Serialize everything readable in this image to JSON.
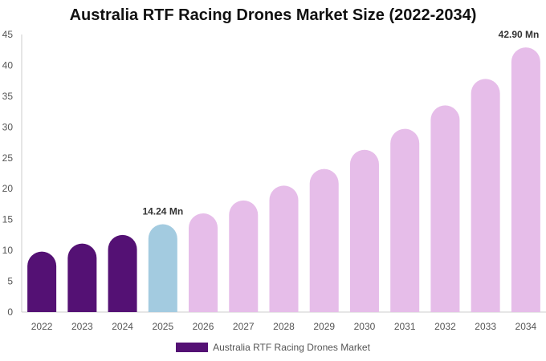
{
  "chart_data": {
    "type": "bar",
    "title": "Australia RTF Racing Drones Market Size (2022-2034)",
    "categories": [
      "2022",
      "2023",
      "2024",
      "2025",
      "2026",
      "2027",
      "2028",
      "2029",
      "2030",
      "2031",
      "2032",
      "2033",
      "2034"
    ],
    "series": [
      {
        "name": "Australia RTF Racing Drones Market",
        "values": [
          9.8,
          11.1,
          12.5,
          14.24,
          16.0,
          18.1,
          20.5,
          23.2,
          26.3,
          29.7,
          33.5,
          37.8,
          42.9
        ]
      }
    ],
    "bar_phase": [
      "historical",
      "historical",
      "historical",
      "base",
      "forecast",
      "forecast",
      "forecast",
      "forecast",
      "forecast",
      "forecast",
      "forecast",
      "forecast",
      "forecast"
    ],
    "data_labels": [
      {
        "index": 3,
        "text": "14.24 Mn"
      },
      {
        "index": 12,
        "text": "42.90 Mn"
      }
    ],
    "xlabel": "",
    "ylabel": "",
    "ylim": [
      0,
      45
    ],
    "yticks": [
      0,
      5,
      10,
      15,
      20,
      25,
      30,
      35,
      40,
      45
    ],
    "grid": false,
    "legend_position": "bottom",
    "colors": {
      "historical": "#541174",
      "base": "#a3cbe0",
      "forecast": "#e6bde9",
      "axis": "#cccccc"
    }
  }
}
